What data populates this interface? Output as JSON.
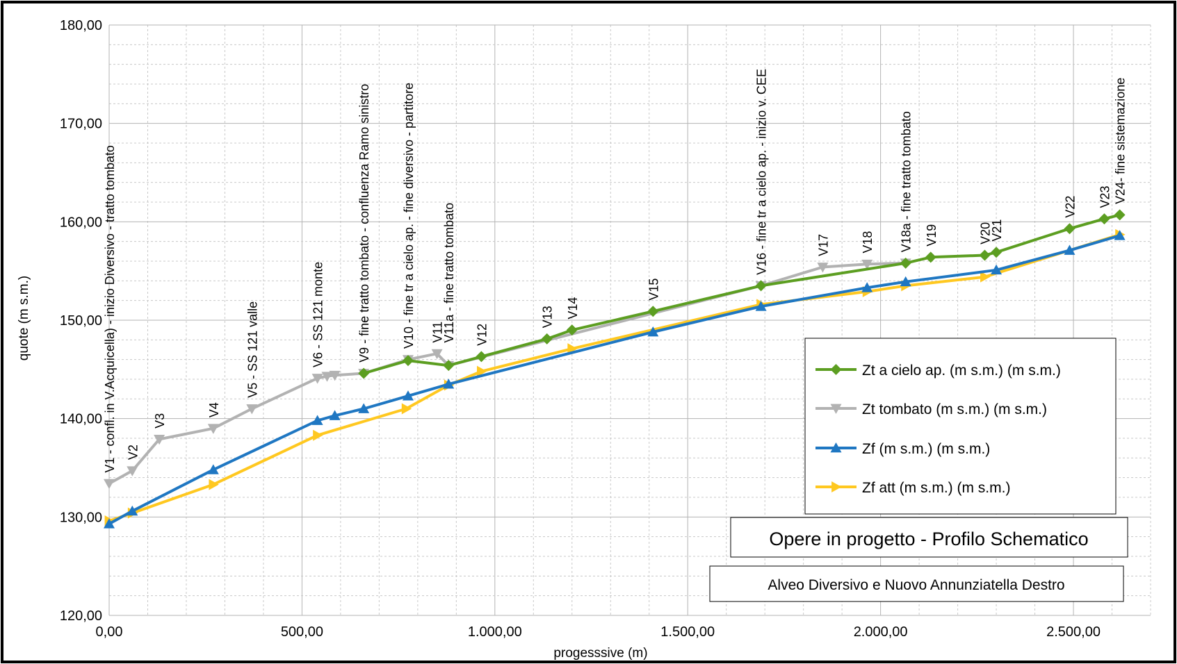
{
  "chart_data": {
    "type": "line",
    "title": "Opere in progetto - Profilo Schematico",
    "subtitle": "Alveo Diversivo e Nuovo Annunziatella Destro",
    "xlabel": "progesssive (m)",
    "ylabel": "quote (m s.m.)",
    "xlim": [
      0,
      2700
    ],
    "ylim": [
      120,
      180
    ],
    "x_ticks": [
      "0,00",
      "500,00",
      "1.000,00",
      "1.500,00",
      "2.000,00",
      "2.500,00"
    ],
    "y_ticks": [
      "120,00",
      "130,00",
      "140,00",
      "150,00",
      "160,00",
      "170,00",
      "180,00"
    ],
    "grid": true,
    "legend_position": "right",
    "series": [
      {
        "name": "Zt a cielo ap. (m s.m.) (m s.m.)",
        "color": "#5c9e21",
        "marker": "diamond",
        "points": [
          [
            660,
            144.6
          ],
          [
            775,
            145.9
          ],
          [
            880,
            145.4
          ],
          [
            965,
            146.3
          ],
          [
            1135,
            148.1
          ],
          [
            1200,
            149.0
          ],
          [
            1410,
            150.9
          ],
          [
            1690,
            153.5
          ],
          [
            2065,
            155.8
          ],
          [
            2130,
            156.4
          ],
          [
            2270,
            156.6
          ],
          [
            2300,
            156.9
          ],
          [
            2490,
            159.3
          ],
          [
            2580,
            160.3
          ],
          [
            2620,
            160.7
          ]
        ]
      },
      {
        "name": "Zt tombato (m s.m.) (m s.m.)",
        "color": "#b2b2b2",
        "marker": "triangle-down",
        "points": [
          [
            0,
            133.4
          ],
          [
            60,
            134.7
          ],
          [
            130,
            137.9
          ],
          [
            270,
            139.0
          ],
          [
            370,
            141.0
          ],
          [
            540,
            144.1
          ],
          [
            565,
            144.3
          ],
          [
            585,
            144.4
          ],
          [
            660,
            144.6
          ],
          [
            775,
            146.0
          ],
          [
            850,
            146.6
          ],
          [
            880,
            145.4
          ],
          [
            1690,
            153.5
          ],
          [
            1850,
            155.4
          ],
          [
            1965,
            155.7
          ],
          [
            2065,
            155.8
          ]
        ]
      },
      {
        "name": "Zf  (m s.m.) (m s.m.)",
        "color": "#1f77c2",
        "marker": "triangle-up",
        "points": [
          [
            0,
            129.3
          ],
          [
            60,
            130.6
          ],
          [
            270,
            134.8
          ],
          [
            540,
            139.8
          ],
          [
            585,
            140.3
          ],
          [
            660,
            141.0
          ],
          [
            775,
            142.3
          ],
          [
            880,
            143.5
          ],
          [
            1410,
            148.8
          ],
          [
            1690,
            151.4
          ],
          [
            1965,
            153.3
          ],
          [
            2065,
            153.9
          ],
          [
            2300,
            155.1
          ],
          [
            2490,
            157.1
          ],
          [
            2620,
            158.6
          ]
        ]
      },
      {
        "name": "Zf att  (m s.m.) (m s.m.)",
        "color": "#ffc820",
        "marker": "triangle-right",
        "points": [
          [
            0,
            129.6
          ],
          [
            60,
            130.4
          ],
          [
            270,
            133.3
          ],
          [
            540,
            138.3
          ],
          [
            770,
            141.0
          ],
          [
            880,
            143.4
          ],
          [
            965,
            144.8
          ],
          [
            1200,
            147.1
          ],
          [
            1690,
            151.6
          ],
          [
            1965,
            152.9
          ],
          [
            2065,
            153.5
          ],
          [
            2270,
            154.4
          ],
          [
            2620,
            158.7
          ]
        ]
      }
    ],
    "section_labels": [
      {
        "x": 0,
        "y": 134.5,
        "text": "V1 - confl. in V.Acquicella) - inizio Diversivo - tratto tombato"
      },
      {
        "x": 60,
        "y": 135.8,
        "text": "V2"
      },
      {
        "x": 130,
        "y": 139.0,
        "text": "V3"
      },
      {
        "x": 270,
        "y": 140.1,
        "text": "V4"
      },
      {
        "x": 370,
        "y": 142.1,
        "text": "V5 - SS 121 valle"
      },
      {
        "x": 540,
        "y": 145.2,
        "text": "V6 - SS 121 monte"
      },
      {
        "x": 660,
        "y": 145.7,
        "text": "V9 - fine tratto tombato - confluenza Ramo sinistro"
      },
      {
        "x": 775,
        "y": 147.1,
        "text": "V10 - fine tr a cielo ap. - fine diversivo - partitore"
      },
      {
        "x": 850,
        "y": 147.7,
        "text": "V11"
      },
      {
        "x": 880,
        "y": 147.7,
        "text": "V11a - fine tratto tombato"
      },
      {
        "x": 965,
        "y": 147.4,
        "text": "V12"
      },
      {
        "x": 1135,
        "y": 149.2,
        "text": "V13"
      },
      {
        "x": 1200,
        "y": 150.1,
        "text": "V14"
      },
      {
        "x": 1410,
        "y": 152.0,
        "text": "V15"
      },
      {
        "x": 1690,
        "y": 154.6,
        "text": "V16 - fine tr a cielo ap. - inizio v. CEE"
      },
      {
        "x": 1850,
        "y": 156.5,
        "text": "V17"
      },
      {
        "x": 1965,
        "y": 156.8,
        "text": "V18"
      },
      {
        "x": 2065,
        "y": 156.9,
        "text": "V18a - fine tratto tombato"
      },
      {
        "x": 2130,
        "y": 157.5,
        "text": "V19"
      },
      {
        "x": 2270,
        "y": 157.7,
        "text": "V20"
      },
      {
        "x": 2300,
        "y": 158.0,
        "text": "V21"
      },
      {
        "x": 2490,
        "y": 160.4,
        "text": "V22"
      },
      {
        "x": 2580,
        "y": 161.4,
        "text": "V23"
      },
      {
        "x": 2620,
        "y": 161.8,
        "text": "V24- fine sistemazione"
      }
    ]
  }
}
